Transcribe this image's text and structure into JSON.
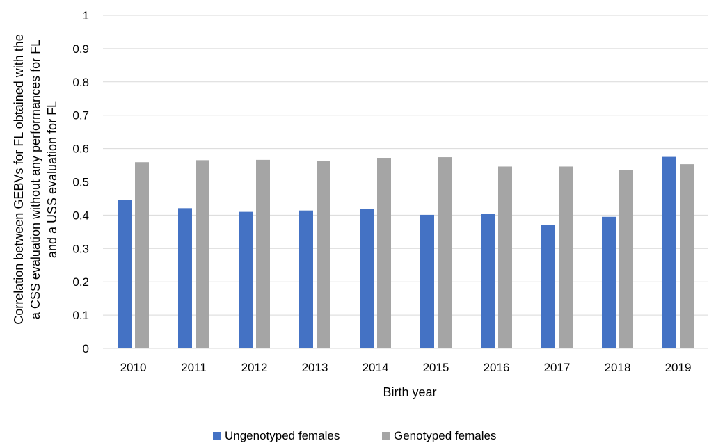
{
  "chart_data": {
    "type": "bar",
    "xlabel": "Birth year",
    "ylabel_lines": [
      "Correlation between GEBVs for FL obtained with the",
      "a CSS evaluation without any performances for FL",
      "and a  USS evaluation for FL"
    ],
    "ylim": [
      0,
      1
    ],
    "yticks": [
      "0",
      "0.1",
      "0.2",
      "0.3",
      "0.4",
      "0.5",
      "0.6",
      "0.7",
      "0.8",
      "0.9",
      "1"
    ],
    "grid": true,
    "legend_position": "bottom",
    "categories": [
      "2010",
      "2011",
      "2012",
      "2013",
      "2014",
      "2015",
      "2016",
      "2017",
      "2018",
      "2019"
    ],
    "series": [
      {
        "name": "Ungenotyped females",
        "color": "#4472C4",
        "values": [
          0.445,
          0.421,
          0.41,
          0.414,
          0.419,
          0.401,
          0.404,
          0.37,
          0.395,
          0.575
        ]
      },
      {
        "name": "Genotyped females",
        "color": "#A5A5A5",
        "values": [
          0.559,
          0.565,
          0.566,
          0.563,
          0.572,
          0.574,
          0.546,
          0.546,
          0.535,
          0.553
        ]
      }
    ]
  }
}
